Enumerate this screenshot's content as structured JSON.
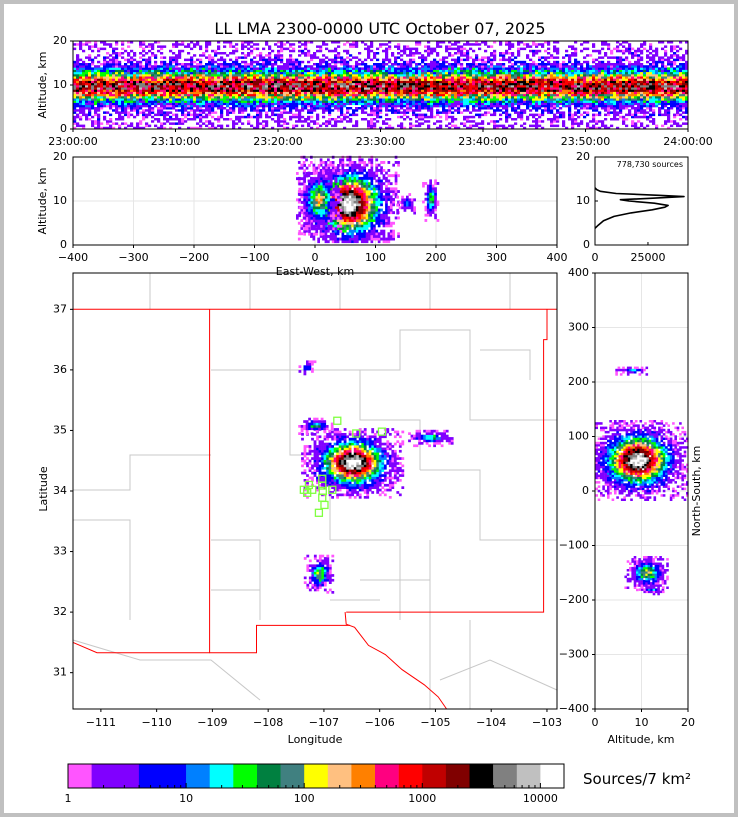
{
  "title": "LL LMA 2300-0000 UTC October 07, 2025",
  "chart_data": [
    {
      "id": "time_height",
      "type": "heatmap",
      "ylabel": "Altitude, km",
      "ylim": [
        0,
        20
      ],
      "yticks": [
        "0",
        "10",
        "20"
      ],
      "xticks": [
        "23:00:00",
        "23:10:00",
        "23:20:00",
        "23:30:00",
        "23:40:00",
        "23:50:00",
        "24:00:00"
      ],
      "band": {
        "center_km": 9.5,
        "spread_km": 2.4,
        "peak_log_density": 3.3
      }
    },
    {
      "id": "ew_alt",
      "type": "heatmap",
      "xlabel": "East-West, km",
      "ylabel": "Altitude, km",
      "xlim": [
        -400,
        400
      ],
      "ylim": [
        0,
        20
      ],
      "xticks": [
        "−400",
        "−300",
        "−200",
        "−100",
        "0",
        "100",
        "200",
        "300",
        "400"
      ],
      "yticks": [
        "0",
        "10",
        "20"
      ],
      "clusters": [
        {
          "x": 55,
          "y": 9,
          "sx": 32,
          "sy": 4.2,
          "peak": 4.2
        },
        {
          "x": 5,
          "y": 10,
          "sx": 14,
          "sy": 3,
          "peak": 2.3
        },
        {
          "x": 190,
          "y": 10,
          "sx": 5,
          "sy": 1.8,
          "peak": 1.8
        },
        {
          "x": 150,
          "y": 9,
          "sx": 6,
          "sy": 1,
          "peak": 1.0
        }
      ]
    },
    {
      "id": "alt_histogram",
      "type": "line",
      "annotation": "778,730 sources",
      "xlim": [
        0,
        43900
      ],
      "ylim": [
        0,
        20
      ],
      "xticks": [
        "0",
        "25000"
      ],
      "yticks": [
        "0",
        "10",
        "20"
      ],
      "altitude_km": [
        3.8,
        4.5,
        5.5,
        6.5,
        7.3,
        8.0,
        8.6,
        9.0,
        9.5,
        10.0,
        10.3,
        10.6,
        11.0,
        11.3,
        11.7,
        12.2,
        12.6,
        13.0
      ],
      "count": [
        0,
        1500,
        4000,
        9000,
        17000,
        27000,
        33000,
        34500,
        28000,
        16000,
        12000,
        25000,
        42000,
        30000,
        10000,
        2500,
        800,
        0
      ]
    },
    {
      "id": "plan_view",
      "type": "heatmap",
      "xlabel": "Longitude",
      "ylabel": "Latitude",
      "xlim": [
        -111.5,
        -102.82
      ],
      "ylim": [
        30.4,
        37.6
      ],
      "xticks": [
        "−111",
        "−110",
        "−109",
        "−108",
        "−107",
        "−106",
        "−105",
        "−104",
        "−103"
      ],
      "xtick_values": [
        -111,
        -110,
        -109,
        -108,
        -107,
        -106,
        -105,
        -104,
        -103
      ],
      "yticks": [
        "31",
        "32",
        "33",
        "34",
        "35",
        "36",
        "37"
      ],
      "ytick_values": [
        31,
        32,
        33,
        34,
        35,
        36,
        37
      ],
      "clusters": [
        {
          "x": -106.5,
          "y": 34.45,
          "sx": 0.35,
          "sy": 0.22,
          "peak": 4.2
        },
        {
          "x": -107.1,
          "y": 32.62,
          "sx": 0.1,
          "sy": 0.12,
          "peak": 2.0
        },
        {
          "x": -107.15,
          "y": 35.06,
          "sx": 0.12,
          "sy": 0.05,
          "peak": 1.6
        },
        {
          "x": -105.1,
          "y": 34.86,
          "sx": 0.15,
          "sy": 0.05,
          "peak": 1.6
        },
        {
          "x": -107.3,
          "y": 36.02,
          "sx": 0.06,
          "sy": 0.04,
          "peak": 1.0
        }
      ],
      "stations": [
        [
          -106.76,
          35.16
        ],
        [
          -106.42,
          34.95
        ],
        [
          -105.96,
          34.98
        ],
        [
          -107.03,
          34.2
        ],
        [
          -107.27,
          34.1
        ],
        [
          -107.03,
          34.09
        ],
        [
          -107.36,
          34.02
        ],
        [
          -107.21,
          34.02
        ],
        [
          -107.02,
          34.0
        ],
        [
          -106.85,
          34.02
        ],
        [
          -107.3,
          33.97
        ],
        [
          -107.03,
          33.89
        ],
        [
          -106.99,
          33.77
        ],
        [
          -107.09,
          33.64
        ]
      ],
      "station_color": "#80ff40",
      "boundary_color": "#ff0000"
    },
    {
      "id": "ns_alt",
      "type": "heatmap",
      "xlabel": "Altitude, km",
      "ylabel": "North-South, km",
      "xlim": [
        0,
        20
      ],
      "ylim": [
        -400,
        400
      ],
      "xticks": [
        "0",
        "10",
        "20"
      ],
      "yticks": [
        "−400",
        "−300",
        "−200",
        "−100",
        "0",
        "100",
        "200",
        "300",
        "400"
      ],
      "clusters": [
        {
          "x": 9,
          "y": 55,
          "sx": 4.2,
          "sy": 28,
          "peak": 4.2
        },
        {
          "x": 11,
          "y": -152,
          "sx": 1.8,
          "sy": 12,
          "peak": 2.2
        },
        {
          "x": 12,
          "y": -183,
          "sx": 1,
          "sy": 3,
          "peak": 1.2
        },
        {
          "x": 8,
          "y": 220,
          "sx": 1.4,
          "sy": 3,
          "peak": 1.2
        }
      ]
    }
  ],
  "colorbar": {
    "label": "Sources/7 km²",
    "tick_labels": [
      "1",
      "10",
      "100",
      "1000",
      "10000"
    ],
    "log_edges": [
      0,
      0.2,
      0.6,
      1,
      1.2,
      1.4,
      1.6,
      1.8,
      2,
      2.2,
      2.4,
      2.6,
      2.8,
      3,
      3.2,
      3.4,
      3.6,
      3.8,
      4,
      4.2
    ],
    "colors": [
      "#ff55ff",
      "#8000ff",
      "#0000ff",
      "#0080ff",
      "#00ffff",
      "#00ff00",
      "#008040",
      "#408080",
      "#ffff00",
      "#ffc080",
      "#ff8000",
      "#ff0080",
      "#ff0000",
      "#c00000",
      "#800000",
      "#000000",
      "#808080",
      "#c0c0c0",
      "#ffffff"
    ]
  }
}
